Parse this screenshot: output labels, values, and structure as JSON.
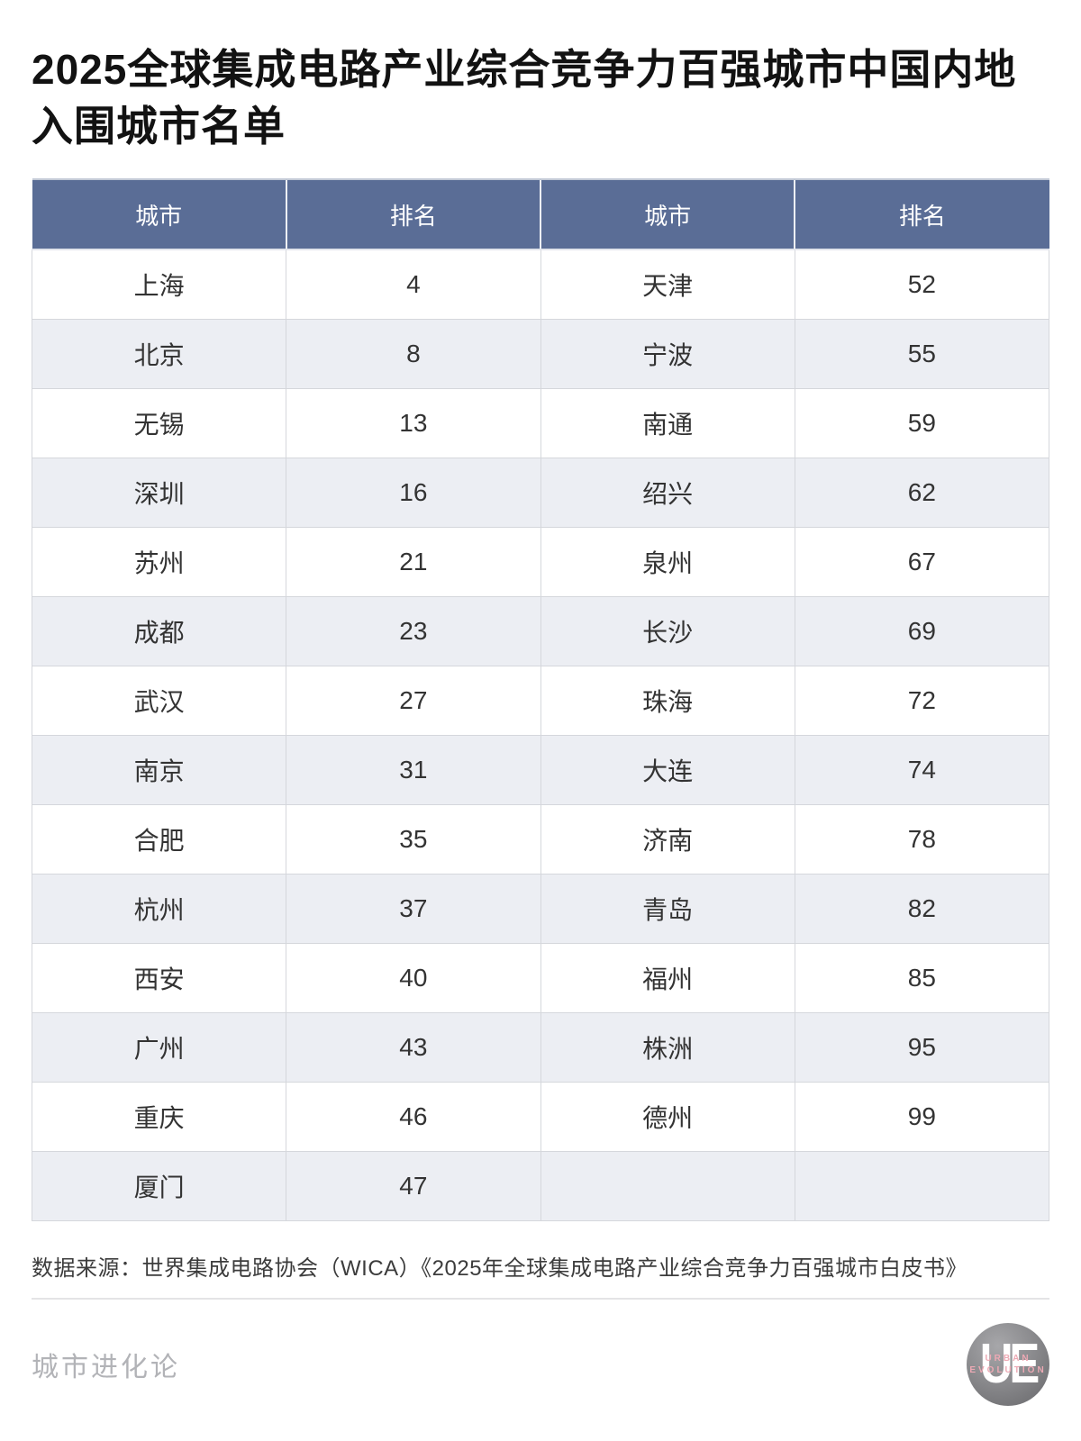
{
  "page": {
    "title": "2025全球集成电路产业综合竞争力百强城市中国内地入围城市名单",
    "source": "数据来源：世界集成电路协会（WICA）《2025年全球集成电路产业综合竞争力百强城市白皮书》",
    "footer_brand": "城市进化论",
    "logo": {
      "monogram": "UE",
      "line1": "URBAN",
      "line2": "EVOLUTION"
    }
  },
  "table": {
    "headers": [
      "城市",
      "排名",
      "城市",
      "排名"
    ],
    "rows": [
      [
        "上海",
        "4",
        "天津",
        "52"
      ],
      [
        "北京",
        "8",
        "宁波",
        "55"
      ],
      [
        "无锡",
        "13",
        "南通",
        "59"
      ],
      [
        "深圳",
        "16",
        "绍兴",
        "62"
      ],
      [
        "苏州",
        "21",
        "泉州",
        "67"
      ],
      [
        "成都",
        "23",
        "长沙",
        "69"
      ],
      [
        "武汉",
        "27",
        "珠海",
        "72"
      ],
      [
        "南京",
        "31",
        "大连",
        "74"
      ],
      [
        "合肥",
        "35",
        "济南",
        "78"
      ],
      [
        "杭州",
        "37",
        "青岛",
        "82"
      ],
      [
        "西安",
        "40",
        "福州",
        "85"
      ],
      [
        "广州",
        "43",
        "株洲",
        "95"
      ],
      [
        "重庆",
        "46",
        "德州",
        "99"
      ],
      [
        "厦门",
        "47",
        "",
        ""
      ]
    ]
  },
  "chart_data": {
    "type": "table",
    "title": "2025全球集成电路产业综合竞争力百强城市中国内地入围城市名单",
    "columns": [
      "城市",
      "排名",
      "城市",
      "排名"
    ],
    "source": "数据来源：世界集成电路协会（WICA）《2025年全球集成电路产业综合竞争力百强城市白皮书》",
    "city_rankings": [
      {
        "city": "上海",
        "rank": 4
      },
      {
        "city": "北京",
        "rank": 8
      },
      {
        "city": "无锡",
        "rank": 13
      },
      {
        "city": "深圳",
        "rank": 16
      },
      {
        "city": "苏州",
        "rank": 21
      },
      {
        "city": "成都",
        "rank": 23
      },
      {
        "city": "武汉",
        "rank": 27
      },
      {
        "city": "南京",
        "rank": 31
      },
      {
        "city": "合肥",
        "rank": 35
      },
      {
        "city": "杭州",
        "rank": 37
      },
      {
        "city": "西安",
        "rank": 40
      },
      {
        "city": "广州",
        "rank": 43
      },
      {
        "city": "重庆",
        "rank": 46
      },
      {
        "city": "厦门",
        "rank": 47
      },
      {
        "city": "天津",
        "rank": 52
      },
      {
        "city": "宁波",
        "rank": 55
      },
      {
        "city": "南通",
        "rank": 59
      },
      {
        "city": "绍兴",
        "rank": 62
      },
      {
        "city": "泉州",
        "rank": 67
      },
      {
        "city": "长沙",
        "rank": 69
      },
      {
        "city": "珠海",
        "rank": 72
      },
      {
        "city": "大连",
        "rank": 74
      },
      {
        "city": "济南",
        "rank": 78
      },
      {
        "city": "青岛",
        "rank": 82
      },
      {
        "city": "福州",
        "rank": 85
      },
      {
        "city": "株洲",
        "rank": 95
      },
      {
        "city": "德州",
        "rank": 99
      }
    ]
  },
  "colors": {
    "header_bg": "#5a6d96",
    "header_text": "#ffffff",
    "row_alt_bg": "#eceef3",
    "border": "#d5d7dc",
    "cell_text": "#333333",
    "title_text": "#121212",
    "footer_text": "#b2b3b7",
    "logo_gray": "#8b8b8e",
    "logo_pink": "#eda9b4"
  }
}
